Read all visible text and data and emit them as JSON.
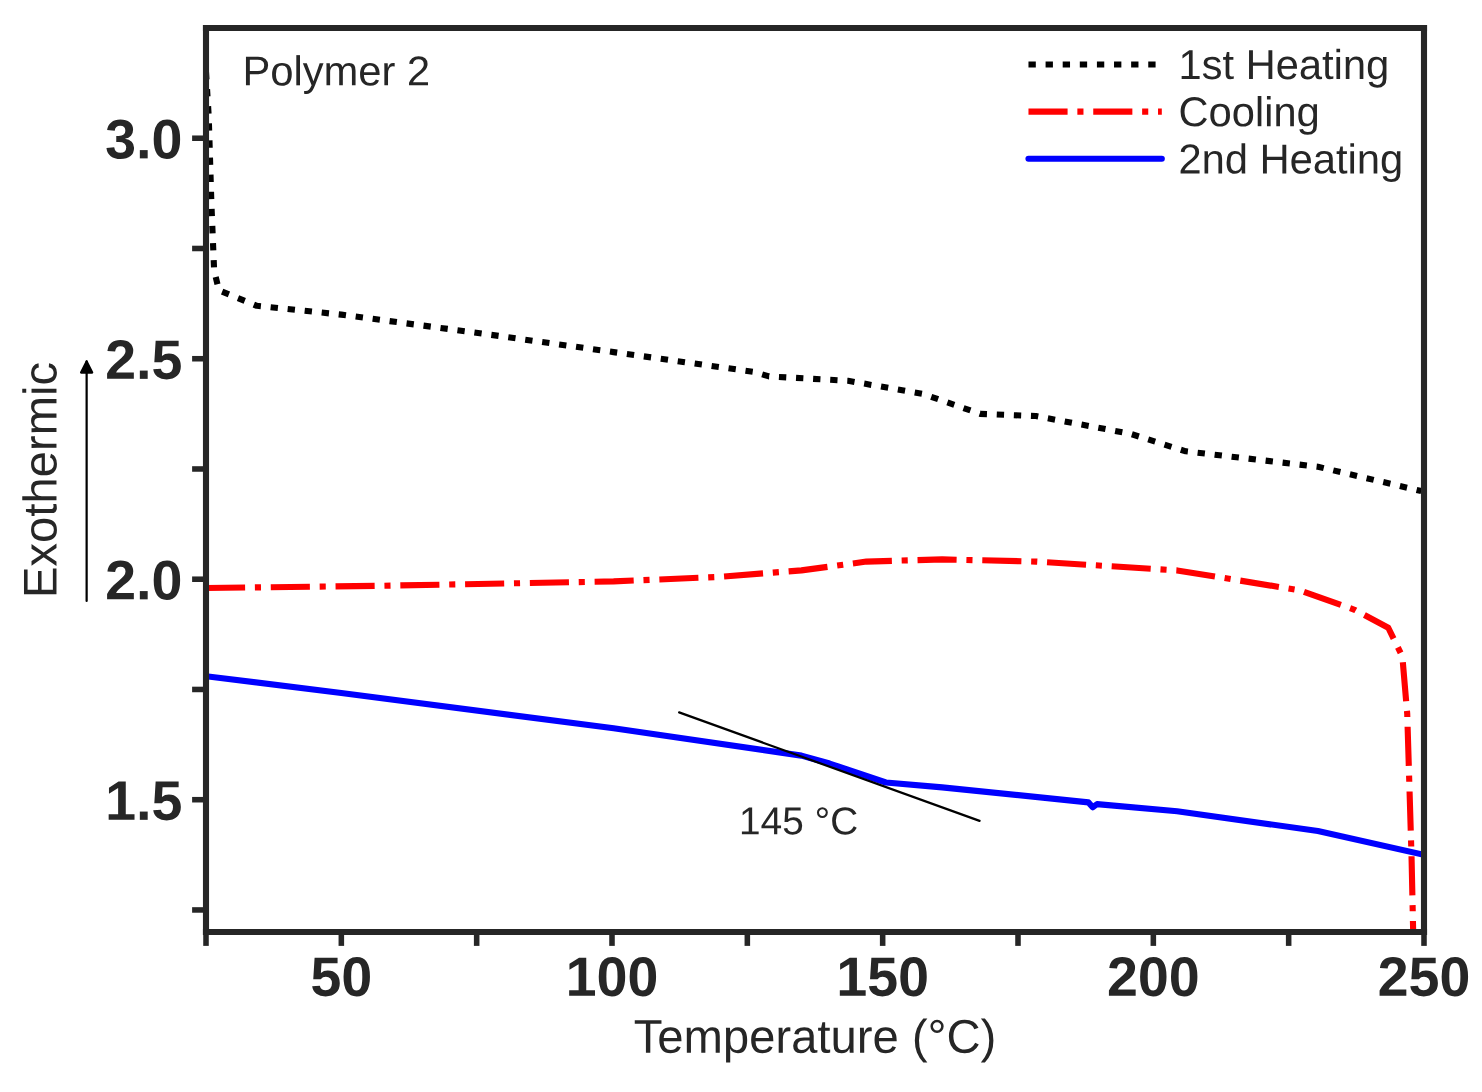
{
  "chart_data": {
    "type": "line",
    "title": "Polymer 2",
    "xlabel": "Temperature (°C)",
    "ylabel": "Exothermic",
    "xlim": [
      25,
      250
    ],
    "ylim": [
      1.2,
      3.25
    ],
    "xticks": [
      {
        "value": 25,
        "label": null
      },
      50,
      {
        "value": 75,
        "label": null
      },
      100,
      {
        "value": 125,
        "label": null
      },
      150,
      {
        "value": 175,
        "label": null
      },
      200,
      {
        "value": 225,
        "label": null
      },
      250
    ],
    "yticks": [
      {
        "value": 1.25,
        "label": null
      },
      {
        "value": 1.5,
        "label": "1.5"
      },
      {
        "value": 1.75,
        "label": null
      },
      {
        "value": 2.0,
        "label": "2.0"
      },
      {
        "value": 2.25,
        "label": null
      },
      {
        "value": 2.5,
        "label": "2.5"
      },
      {
        "value": 2.75,
        "label": null
      },
      {
        "value": 3.0,
        "label": "3.0"
      }
    ],
    "grid": false,
    "legend": "top right",
    "annotations": [
      {
        "text": "145 °C",
        "x": 145,
        "y": 1.56
      }
    ],
    "series": [
      {
        "name": "1st Heating",
        "color": "#000000",
        "line_style": "dotted",
        "x": [
          25,
          25.5,
          26,
          26.5,
          27.4,
          34.4,
          50,
          74.3,
          100.3,
          126.3,
          129,
          143.6,
          157.5,
          168,
          178.3,
          195.7,
          206,
          213,
          230.4,
          249.5
        ],
        "values": [
          3.15,
          3.05,
          2.85,
          2.7,
          2.655,
          2.62,
          2.6,
          2.56,
          2.515,
          2.47,
          2.46,
          2.45,
          2.42,
          2.375,
          2.37,
          2.33,
          2.29,
          2.28,
          2.255,
          2.2
        ]
      },
      {
        "name": "Cooling",
        "color": "#ff0000",
        "line_style": "dashdot",
        "x": [
          25,
          56.9,
          100.3,
          119.4,
          135,
          147,
          161,
          178.3,
          204.4,
          227,
          237.3,
          243.4,
          246,
          246.9,
          247.7,
          248
        ],
        "values": [
          1.98,
          1.985,
          1.995,
          2.005,
          2.02,
          2.04,
          2.045,
          2.04,
          2.02,
          1.975,
          1.93,
          1.89,
          1.825,
          1.695,
          1.37,
          1.2
        ]
      },
      {
        "name": "2nd Heating",
        "color": "#0000ff",
        "line_style": "solid",
        "x": [
          25,
          50,
          100.3,
          135,
          140.2,
          150.6,
          161,
          188,
          188.8,
          189.6,
          204.4,
          230.4,
          250
        ],
        "values": [
          1.78,
          1.742,
          1.662,
          1.6,
          1.582,
          1.539,
          1.528,
          1.494,
          1.483,
          1.49,
          1.474,
          1.429,
          1.375
        ]
      },
      {
        "type": "line",
        "color": "#000000",
        "line_style": "solid",
        "x": [
          112.4,
          167.9
        ],
        "values": [
          1.698,
          1.452
        ]
      }
    ]
  }
}
